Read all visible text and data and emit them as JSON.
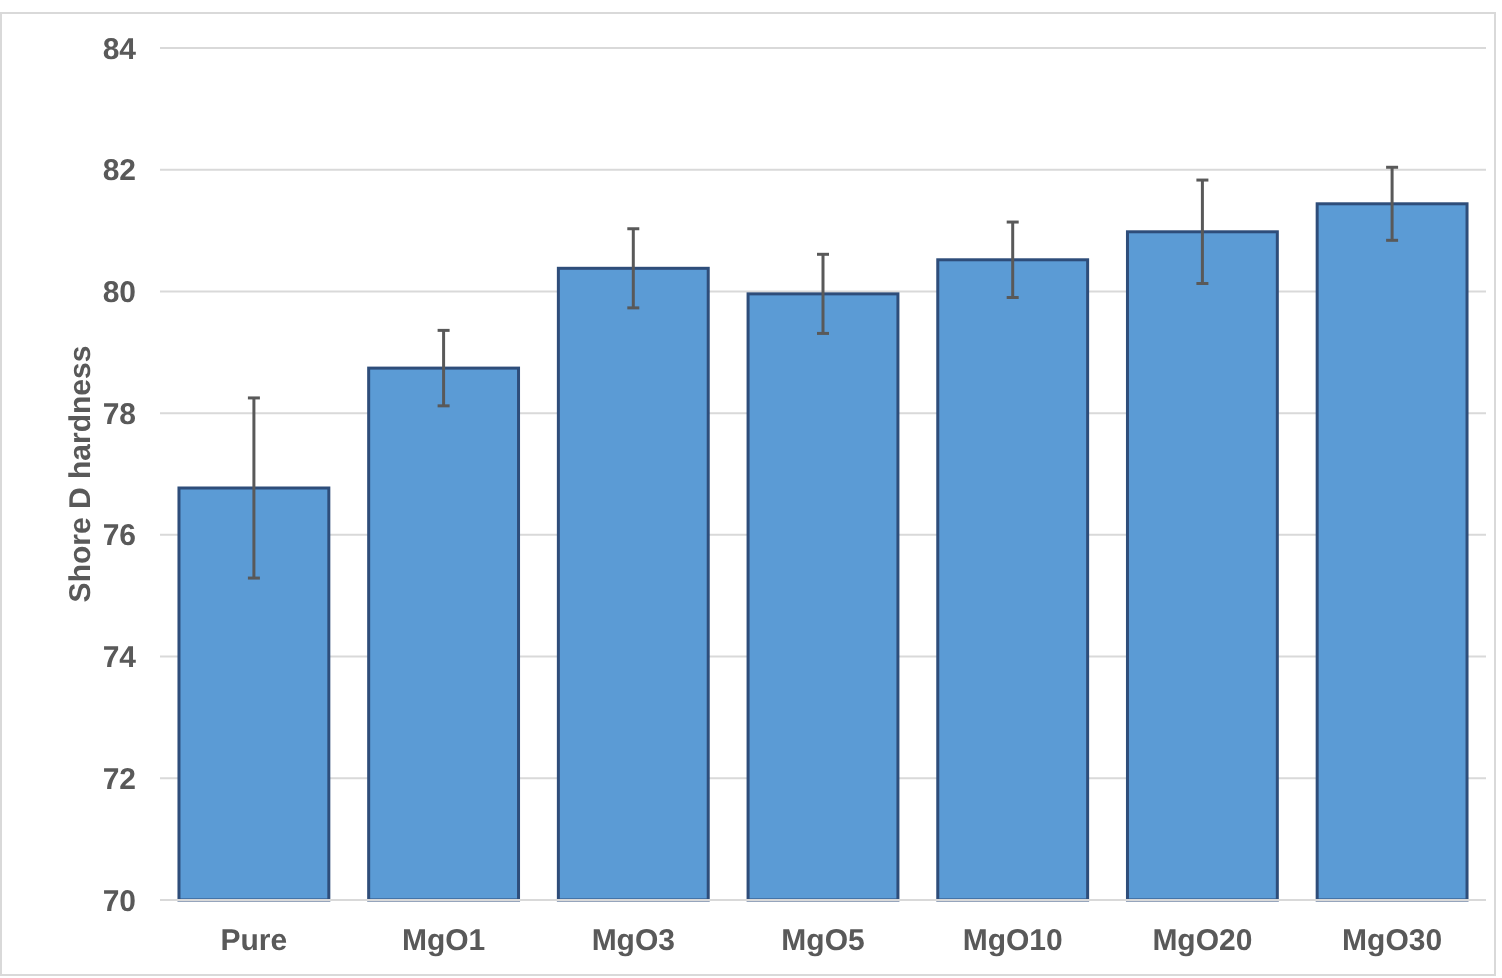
{
  "chart_data": {
    "type": "bar",
    "ylabel": "Shore D hardness",
    "categories": [
      "Pure",
      "MgO1",
      "MgO3",
      "MgO5",
      "MgO10",
      "MgO20",
      "MgO30"
    ],
    "values": [
      76.77,
      78.74,
      80.38,
      79.96,
      80.52,
      80.98,
      81.44
    ],
    "errors": [
      1.48,
      0.62,
      0.65,
      0.65,
      0.62,
      0.85,
      0.6
    ],
    "color": "#5b9bd5",
    "ylim": [
      70,
      84
    ],
    "yticks": [
      70,
      72,
      74,
      76,
      78,
      80,
      82,
      84
    ],
    "grid": "y"
  }
}
